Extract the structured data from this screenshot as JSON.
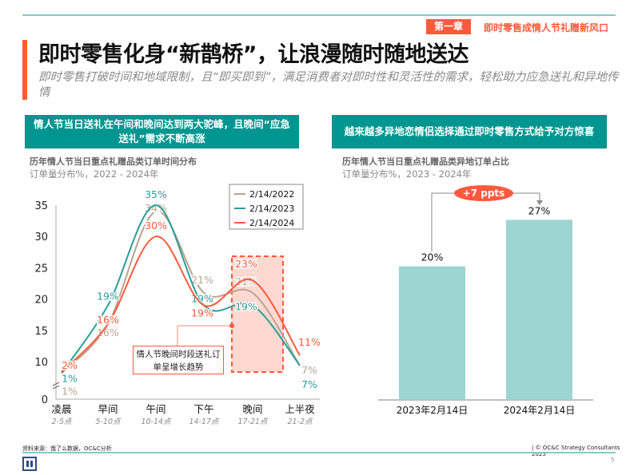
{
  "header": {
    "chapter_tag": "第一章",
    "chapter_title": "即时零售成情人节礼赠新风口",
    "title": "即时零售化身“新鹊桥”，让浪漫随时随地送达",
    "subtitle": "即时零售打破时间和地域限制，且“即买即到”，满足消费者对即时性和灵活性的需求，轻松助力应急送礼和异地传情"
  },
  "left_panel": {
    "banner": "情人节当日送礼在午间和晚间达到两大驼峰，且晚间“应急送礼”需求不断高涨",
    "chart_title": "历年情人节当日重点礼赠品类订单时间分布",
    "chart_subtitle": "订单量分布%，2022 - 2024年",
    "callout": "情人节晚间时段送礼订单呈增长趋势"
  },
  "right_panel": {
    "banner": "越来越多异地恋情侣选择通过即时零售方式给予对方惊喜",
    "chart_title": "历年情人节当日重点礼赠品类异地订单占比",
    "chart_subtitle": "订单量分布%，2023 - 2024年",
    "delta_badge": "+7 ppts"
  },
  "footer": {
    "source": "资料来源：饿了么数据，OC&C分析",
    "copyright": "| © OC&C Strategy Consultants 2025",
    "page_number": "5"
  },
  "colors": {
    "accent": "#ff5a3c",
    "teal": "#00968f",
    "s2022": "#b9a38e",
    "s2023": "#2a9d98",
    "s2024": "#ff5a3c",
    "bar": "#9dd5d3"
  },
  "chart_data": [
    {
      "type": "line",
      "categories": [
        "凌晨",
        "早间",
        "午间",
        "下午",
        "晚间",
        "上半夜"
      ],
      "category_sublabels": [
        "2-5点",
        "5-10点",
        "10-14点",
        "14-17点",
        "17-21点",
        "21-2点"
      ],
      "yticks": [
        0,
        10,
        15,
        20,
        25,
        30,
        35
      ],
      "ylim": [
        0,
        35
      ],
      "axis_break": true,
      "legend": "top-right",
      "highlight_category": "晚间",
      "series": [
        {
          "name": "2/14/2022",
          "values": [
            1,
            16,
            34,
            21,
            21,
            7
          ],
          "labels": [
            "1%",
            "16%",
            "34%",
            "21%",
            "21%",
            "7%"
          ]
        },
        {
          "name": "2/14/2023",
          "values": [
            1,
            19,
            35,
            19,
            19,
            7
          ],
          "labels": [
            "1%",
            "19%",
            "35%",
            "19%",
            "19%",
            "7%"
          ]
        },
        {
          "name": "2/14/2024",
          "values": [
            2,
            16,
            30,
            19,
            23,
            11
          ],
          "labels": [
            "2%",
            "16%",
            "30%",
            "19%",
            "23%",
            "11%"
          ]
        }
      ]
    },
    {
      "type": "bar",
      "categories": [
        "2023年2月14日",
        "2024年2月14日"
      ],
      "values": [
        20,
        27
      ],
      "labels": [
        "20%",
        "27%"
      ]
    }
  ]
}
